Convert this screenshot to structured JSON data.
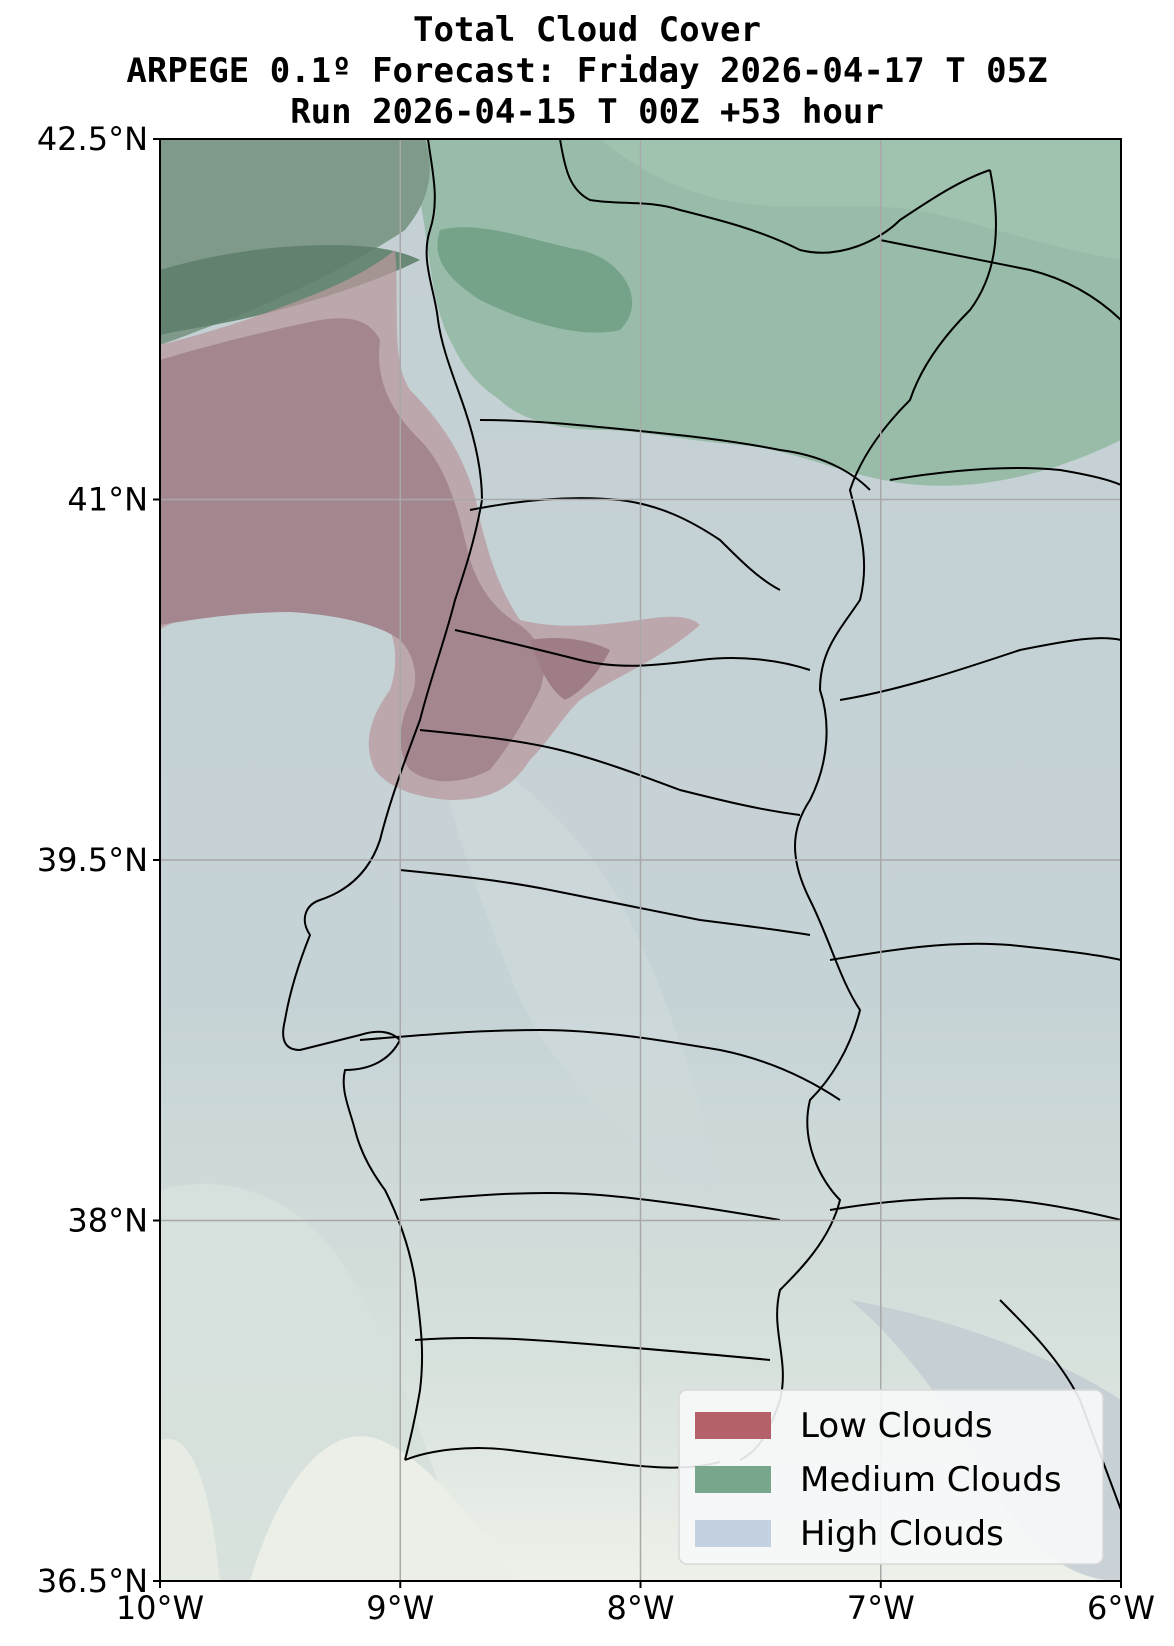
{
  "title": {
    "line1": "Total Cloud Cover",
    "line2": "ARPEGE 0.1º Forecast: Friday 2026-04-17 T 05Z",
    "line3": "Run 2026-04-15 T 00Z +53 hour"
  },
  "map": {
    "lon_range": [
      -10,
      -6
    ],
    "lat_range": [
      36.5,
      42.5
    ],
    "grid": true,
    "lon_ticks": [
      {
        "value": -10,
        "label": "10°W"
      },
      {
        "value": -9,
        "label": "9°W"
      },
      {
        "value": -8,
        "label": "8°W"
      },
      {
        "value": -7,
        "label": "7°W"
      },
      {
        "value": -6,
        "label": "6°W"
      }
    ],
    "lat_ticks": [
      {
        "value": 42.5,
        "label": "42.5°N"
      },
      {
        "value": 41,
        "label": "41°N"
      },
      {
        "value": 39.5,
        "label": "39.5°N"
      },
      {
        "value": 38,
        "label": "38°N"
      },
      {
        "value": 36.5,
        "label": "36.5°N"
      }
    ]
  },
  "legend": {
    "position": "bottom-right",
    "items": [
      {
        "label": "Low Clouds",
        "color": "#b5616a"
      },
      {
        "label": "Medium Clouds",
        "color": "#78a68c"
      },
      {
        "label": "High Clouds",
        "color": "#c4d1e1"
      }
    ]
  },
  "colors": {
    "high_cloud_base": "#c5d1d6",
    "low_cloud": "#a8868f",
    "medium_cloud": "#8fb7a2",
    "clear": "#eff1ea",
    "borders": "#000000"
  }
}
